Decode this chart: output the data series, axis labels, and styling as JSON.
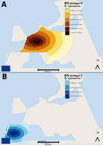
{
  "panel_A_label": "A",
  "panel_B_label": "B",
  "panel_A_title": "BTV serotype 8",
  "panel_A_subtitle": "No. outbreaks/km²",
  "panel_B_title": "BTV serotype 1",
  "panel_B_subtitle": "No. outbreaks/km²",
  "legend_A_colors": [
    "#FFF5C0",
    "#FFE066",
    "#FFC000",
    "#E07800",
    "#A03800",
    "#601000",
    "#300800"
  ],
  "legend_A_labels": [
    "0.00001-0.00171",
    "0.00171-0.00913",
    "0.00913-0.01760",
    "0.01760-0.17200",
    "0.17200-0.71200",
    "0.71200-2.17000",
    "2.17000-9.00000"
  ],
  "legend_B_colors": [
    "#C8EEF8",
    "#7EC8E8",
    "#3090C8",
    "#1050A0",
    "#002878"
  ],
  "legend_B_labels": [
    "0.00001-0.00006",
    "0.00006-0.00060",
    "0.00060-0.00600",
    "0.00600-0.06000",
    "0.06000-0.30000"
  ],
  "map_water_color": "#C8DCF0",
  "map_land_color": "#F0ECE4",
  "map_border_color": "#AAAAAA",
  "bg_color": "#FFFFFF"
}
